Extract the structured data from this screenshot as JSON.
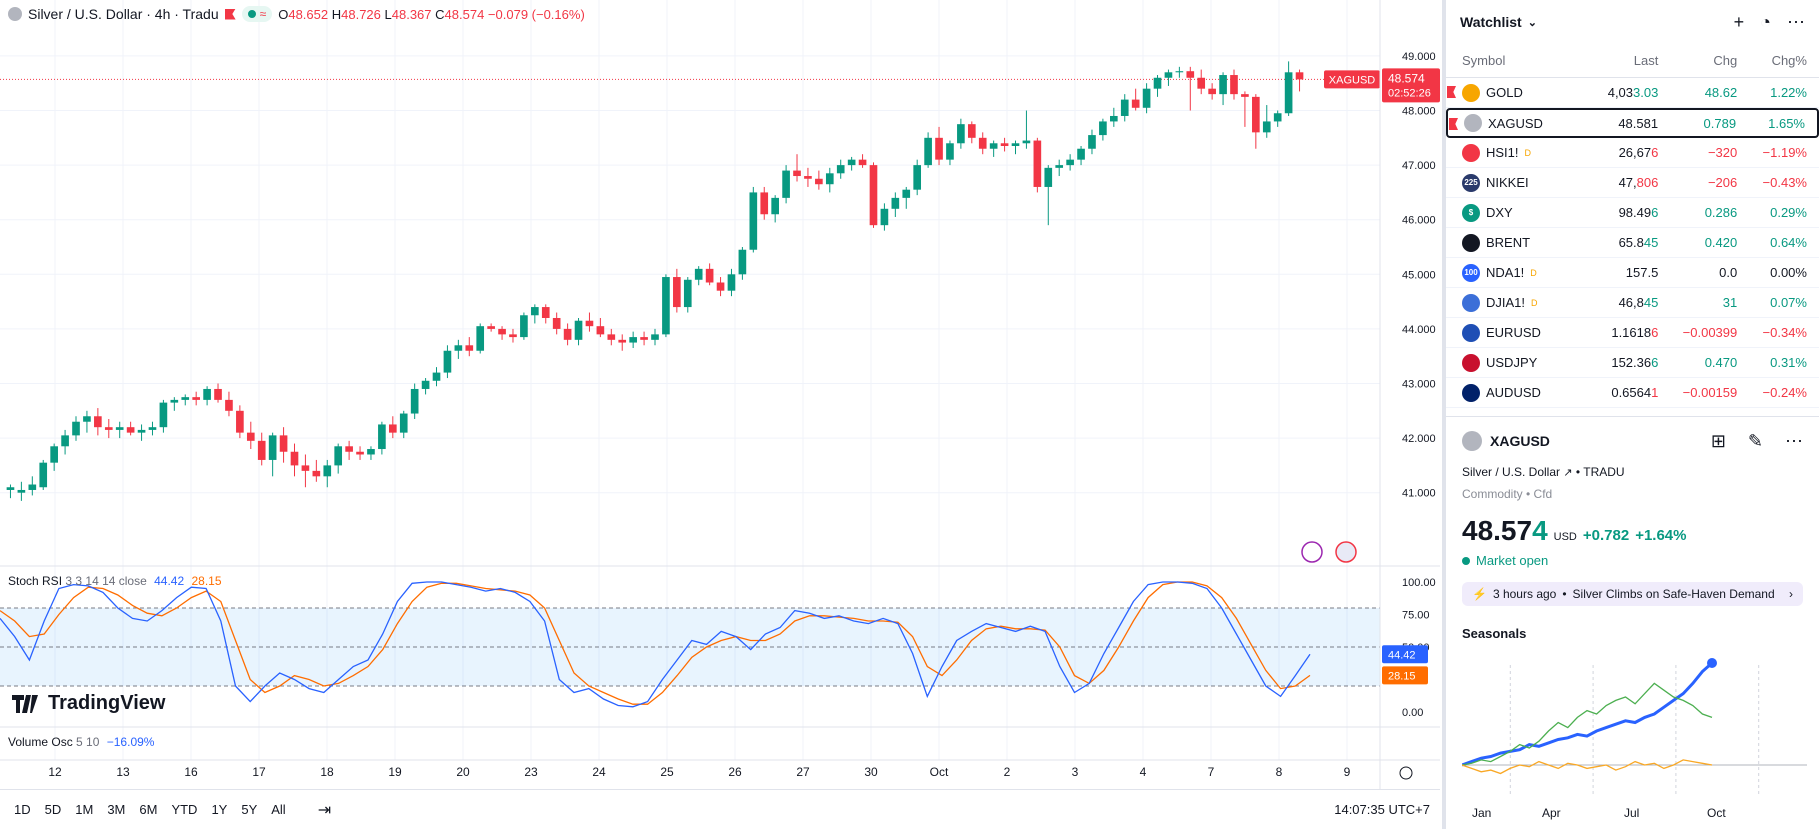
{
  "legend": {
    "title": "Silver / U.S. Dollar · 4h · Tradu",
    "open_label": "O",
    "open": "48.652",
    "high_label": "H",
    "high": "48.726",
    "low_label": "L",
    "low": "48.367",
    "close_label": "C",
    "close": "48.574",
    "change": "−0.079 (−0.16%)"
  },
  "price_axis": {
    "ticks": [
      "49.000",
      "48.000",
      "47.000",
      "46.000",
      "45.000",
      "44.000",
      "43.000",
      "42.000",
      "41.000"
    ],
    "current_symbol": "XAGUSD",
    "current_price": "48.574",
    "countdown": "02:52:26"
  },
  "stoch": {
    "label": "Stoch RSI",
    "params": "3 3 14 14 close",
    "k_value": "44.42",
    "d_value": "28.15",
    "ticks": [
      "100.00",
      "75.00",
      "50.00",
      "0.00"
    ],
    "k_color": "#2962ff",
    "d_color": "#ff6d00"
  },
  "volosc": {
    "label": "Volume Osc",
    "params": "5 10",
    "value": "−16.09%"
  },
  "time_axis": [
    "12",
    "13",
    "16",
    "17",
    "18",
    "19",
    "20",
    "23",
    "24",
    "25",
    "26",
    "27",
    "30",
    "Oct",
    "2",
    "3",
    "4",
    "7",
    "8",
    "9"
  ],
  "bottom_bar": {
    "timeframes": [
      "1D",
      "5D",
      "1M",
      "3M",
      "6M",
      "YTD",
      "1Y",
      "5Y",
      "All"
    ],
    "clock": "14:07:35 UTC+7"
  },
  "logo_text": "TradingView",
  "colors": {
    "up": "#089981",
    "down": "#f23645",
    "accent": "#2962ff"
  },
  "watchlist": {
    "title": "Watchlist",
    "columns": {
      "symbol": "Symbol",
      "last": "Last",
      "chg": "Chg",
      "pct": "Chg%"
    },
    "rows": [
      {
        "symbol": "GOLD",
        "last_a": "4,03",
        "last_b": "3.03",
        "chg": "48.62",
        "pct": "1.22%",
        "dir": "up",
        "icon_bg": "#f7a600",
        "icon": "coin-icon",
        "flag": true
      },
      {
        "symbol": "XAGUSD",
        "last_a": "48.581",
        "last_b": "",
        "chg": "0.789",
        "pct": "1.65%",
        "dir": "up",
        "icon_bg": "#b2b5be",
        "icon": "coin-icon",
        "flag": true,
        "selected": true
      },
      {
        "symbol": "HSI1!",
        "last_a": "26,67",
        "last_b": "6",
        "chg": "−320",
        "pct": "−1.19%",
        "dir": "dn",
        "icon_bg": "#f23645",
        "icon": "hk-icon",
        "d": "D"
      },
      {
        "symbol": "NIKKEI",
        "last_a": "47,",
        "last_b": "806",
        "chg": "−206",
        "pct": "−0.43%",
        "dir": "dn",
        "icon_bg": "#2a3a6b",
        "icon": "225-icon",
        "icon_text": "225"
      },
      {
        "symbol": "DXY",
        "last_a": "98.49",
        "last_b": "6",
        "chg": "0.286",
        "pct": "0.29%",
        "dir": "up",
        "icon_bg": "#089981",
        "icon": "dollar-icon",
        "icon_text": "$"
      },
      {
        "symbol": "BRENT",
        "last_a": "65.8",
        "last_b": "45",
        "chg": "0.420",
        "pct": "0.64%",
        "dir": "up",
        "icon_bg": "#131722",
        "icon": "oil-drop-icon"
      },
      {
        "symbol": "NDA1!",
        "last_a": "157.5",
        "last_b": "",
        "chg": "0.0",
        "pct": "0.00%",
        "dir": "flat",
        "icon_bg": "#2962ff",
        "icon": "100-icon",
        "icon_text": "100",
        "d": "D"
      },
      {
        "symbol": "DJIA1!",
        "last_a": "46,8",
        "last_b": "45",
        "chg": "31",
        "pct": "0.07%",
        "dir": "up",
        "icon_bg": "#3c6fd8",
        "icon": "us-flag-icon",
        "d": "D"
      },
      {
        "symbol": "EURUSD",
        "last_a": "1.1618",
        "last_b": "6",
        "chg": "−0.00399",
        "pct": "−0.34%",
        "dir": "dn",
        "icon_bg": "#1f4fb5",
        "icon": "eu-flag-icon"
      },
      {
        "symbol": "USDJPY",
        "last_a": "152.36",
        "last_b": "6",
        "chg": "0.470",
        "pct": "0.31%",
        "dir": "up",
        "icon_bg": "#c8102e",
        "icon": "jp-flag-icon"
      },
      {
        "symbol": "AUDUSD",
        "last_a": "0.6564",
        "last_b": "1",
        "chg": "−0.00159",
        "pct": "−0.24%",
        "dir": "dn",
        "icon_bg": "#012169",
        "icon": "au-flag-icon"
      }
    ]
  },
  "detail": {
    "symbol": "XAGUSD",
    "name": "Silver / U.S. Dollar",
    "exchange": "TRADU",
    "category": "Commodity • Cfd",
    "price_a": "48.57",
    "price_b": "4",
    "currency": "USD",
    "change": "+0.782",
    "change_pct": "+1.64%",
    "market_status": "Market open",
    "news_time": "3 hours ago",
    "news_headline": "Silver Climbs on Safe-Haven Demand",
    "seasonals_title": "Seasonals",
    "seasonals_months": [
      "Jan",
      "Apr",
      "Jul",
      "Oct"
    ]
  },
  "chart_data": {
    "type": "candlestick",
    "price_axis_range": [
      40.5,
      49.2
    ],
    "candles": [
      [
        41.05,
        41.15,
        40.9,
        41.1
      ],
      [
        41.0,
        41.2,
        40.85,
        41.05
      ],
      [
        41.05,
        41.3,
        40.95,
        41.15
      ],
      [
        41.1,
        41.6,
        41.05,
        41.55
      ],
      [
        41.55,
        41.9,
        41.4,
        41.85
      ],
      [
        41.85,
        42.15,
        41.7,
        42.05
      ],
      [
        42.05,
        42.4,
        41.95,
        42.3
      ],
      [
        42.3,
        42.5,
        42.1,
        42.4
      ],
      [
        42.4,
        42.55,
        42.05,
        42.2
      ],
      [
        42.2,
        42.35,
        42.0,
        42.15
      ],
      [
        42.15,
        42.3,
        42.0,
        42.2
      ],
      [
        42.2,
        42.3,
        42.05,
        42.1
      ],
      [
        42.1,
        42.25,
        41.95,
        42.15
      ],
      [
        42.15,
        42.3,
        42.05,
        42.2
      ],
      [
        42.2,
        42.7,
        42.1,
        42.65
      ],
      [
        42.65,
        42.75,
        42.5,
        42.7
      ],
      [
        42.7,
        42.8,
        42.6,
        42.75
      ],
      [
        42.75,
        42.85,
        42.6,
        42.7
      ],
      [
        42.7,
        42.95,
        42.6,
        42.9
      ],
      [
        42.9,
        43.0,
        42.65,
        42.7
      ],
      [
        42.7,
        42.85,
        42.4,
        42.5
      ],
      [
        42.5,
        42.6,
        42.0,
        42.1
      ],
      [
        42.1,
        42.3,
        41.8,
        41.95
      ],
      [
        41.95,
        42.1,
        41.5,
        41.6
      ],
      [
        41.6,
        42.1,
        41.3,
        42.05
      ],
      [
        42.05,
        42.2,
        41.55,
        41.75
      ],
      [
        41.75,
        41.9,
        41.3,
        41.5
      ],
      [
        41.5,
        41.7,
        41.1,
        41.4
      ],
      [
        41.4,
        41.6,
        41.2,
        41.3
      ],
      [
        41.3,
        41.6,
        41.1,
        41.5
      ],
      [
        41.5,
        41.9,
        41.35,
        41.85
      ],
      [
        41.85,
        41.95,
        41.6,
        41.75
      ],
      [
        41.75,
        41.85,
        41.6,
        41.7
      ],
      [
        41.7,
        41.85,
        41.6,
        41.8
      ],
      [
        41.8,
        42.3,
        41.7,
        42.25
      ],
      [
        42.25,
        42.4,
        42.0,
        42.1
      ],
      [
        42.1,
        42.5,
        42.0,
        42.45
      ],
      [
        42.45,
        43.0,
        42.35,
        42.9
      ],
      [
        42.9,
        43.1,
        42.8,
        43.05
      ],
      [
        43.05,
        43.3,
        42.95,
        43.2
      ],
      [
        43.2,
        43.7,
        43.1,
        43.6
      ],
      [
        43.6,
        43.8,
        43.45,
        43.7
      ],
      [
        43.7,
        43.85,
        43.5,
        43.6
      ],
      [
        43.6,
        44.1,
        43.55,
        44.05
      ],
      [
        44.05,
        44.1,
        43.95,
        44.0
      ],
      [
        44.0,
        44.05,
        43.8,
        43.9
      ],
      [
        43.9,
        44.0,
        43.75,
        43.85
      ],
      [
        43.85,
        44.3,
        43.8,
        44.25
      ],
      [
        44.25,
        44.45,
        44.1,
        44.4
      ],
      [
        44.4,
        44.45,
        44.1,
        44.2
      ],
      [
        44.2,
        44.3,
        43.9,
        44.0
      ],
      [
        44.0,
        44.1,
        43.7,
        43.8
      ],
      [
        43.8,
        44.2,
        43.7,
        44.15
      ],
      [
        44.15,
        44.3,
        43.95,
        44.05
      ],
      [
        44.05,
        44.2,
        43.85,
        43.9
      ],
      [
        43.9,
        44.0,
        43.7,
        43.8
      ],
      [
        43.8,
        43.9,
        43.6,
        43.75
      ],
      [
        43.75,
        43.95,
        43.65,
        43.85
      ],
      [
        43.85,
        43.95,
        43.7,
        43.8
      ],
      [
        43.8,
        44.0,
        43.7,
        43.9
      ],
      [
        43.9,
        45.0,
        43.85,
        44.95
      ],
      [
        44.95,
        45.1,
        44.3,
        44.4
      ],
      [
        44.4,
        44.95,
        44.3,
        44.9
      ],
      [
        44.9,
        45.15,
        44.8,
        45.1
      ],
      [
        45.1,
        45.2,
        44.8,
        44.85
      ],
      [
        44.85,
        44.95,
        44.6,
        44.7
      ],
      [
        44.7,
        45.1,
        44.6,
        45.0
      ],
      [
        45.0,
        45.5,
        44.9,
        45.45
      ],
      [
        45.45,
        46.6,
        45.4,
        46.5
      ],
      [
        46.5,
        46.6,
        46.0,
        46.1
      ],
      [
        46.1,
        46.45,
        45.95,
        46.4
      ],
      [
        46.4,
        47.0,
        46.3,
        46.9
      ],
      [
        46.9,
        47.2,
        46.7,
        46.8
      ],
      [
        46.8,
        46.95,
        46.6,
        46.75
      ],
      [
        46.75,
        46.9,
        46.55,
        46.65
      ],
      [
        46.65,
        46.95,
        46.5,
        46.85
      ],
      [
        46.85,
        47.1,
        46.75,
        47.0
      ],
      [
        47.0,
        47.15,
        46.9,
        47.1
      ],
      [
        47.1,
        47.2,
        46.95,
        47.0
      ],
      [
        47.0,
        47.05,
        45.85,
        45.9
      ],
      [
        45.9,
        46.3,
        45.8,
        46.2
      ],
      [
        46.2,
        46.5,
        46.05,
        46.4
      ],
      [
        46.4,
        46.6,
        46.2,
        46.55
      ],
      [
        46.55,
        47.1,
        46.45,
        47.0
      ],
      [
        47.0,
        47.6,
        46.95,
        47.5
      ],
      [
        47.5,
        47.7,
        47.0,
        47.1
      ],
      [
        47.1,
        47.45,
        47.0,
        47.4
      ],
      [
        47.4,
        47.85,
        47.3,
        47.75
      ],
      [
        47.75,
        47.8,
        47.4,
        47.5
      ],
      [
        47.5,
        47.6,
        47.2,
        47.3
      ],
      [
        47.3,
        47.45,
        47.15,
        47.4
      ],
      [
        47.4,
        47.5,
        47.25,
        47.35
      ],
      [
        47.35,
        47.45,
        47.2,
        47.4
      ],
      [
        47.4,
        48.0,
        47.3,
        47.45
      ],
      [
        47.45,
        47.5,
        46.5,
        46.6
      ],
      [
        46.6,
        47.0,
        45.9,
        46.95
      ],
      [
        46.95,
        47.1,
        46.8,
        47.0
      ],
      [
        47.0,
        47.2,
        46.9,
        47.1
      ],
      [
        47.1,
        47.35,
        47.0,
        47.3
      ],
      [
        47.3,
        47.65,
        47.2,
        47.55
      ],
      [
        47.55,
        47.85,
        47.45,
        47.8
      ],
      [
        47.8,
        48.05,
        47.7,
        47.9
      ],
      [
        47.9,
        48.3,
        47.8,
        48.2
      ],
      [
        48.2,
        48.4,
        48.0,
        48.05
      ],
      [
        48.05,
        48.5,
        47.95,
        48.4
      ],
      [
        48.4,
        48.65,
        48.25,
        48.6
      ],
      [
        48.6,
        48.75,
        48.45,
        48.7
      ],
      [
        48.7,
        48.8,
        48.6,
        48.72
      ],
      [
        48.72,
        48.8,
        48.0,
        48.6
      ],
      [
        48.6,
        48.75,
        48.3,
        48.4
      ],
      [
        48.4,
        48.5,
        48.2,
        48.3
      ],
      [
        48.3,
        48.7,
        48.1,
        48.65
      ],
      [
        48.65,
        48.75,
        48.2,
        48.3
      ],
      [
        48.3,
        48.35,
        47.7,
        48.25
      ],
      [
        48.25,
        48.3,
        47.3,
        47.6
      ],
      [
        47.6,
        48.1,
        47.5,
        47.8
      ],
      [
        47.8,
        48.0,
        47.7,
        47.95
      ],
      [
        47.95,
        48.9,
        47.9,
        48.7
      ],
      [
        48.7,
        48.75,
        48.35,
        48.57
      ]
    ],
    "stoch_k": [
      72,
      58,
      40,
      70,
      95,
      98,
      97,
      92,
      80,
      72,
      70,
      78,
      88,
      96,
      95,
      70,
      20,
      8,
      20,
      30,
      25,
      18,
      15,
      25,
      35,
      40,
      60,
      85,
      99,
      100,
      100,
      98,
      96,
      93,
      95,
      92,
      85,
      70,
      25,
      15,
      18,
      10,
      5,
      4,
      8,
      25,
      40,
      55,
      52,
      62,
      58,
      48,
      60,
      65,
      78,
      76,
      72,
      74,
      70,
      68,
      72,
      68,
      45,
      12,
      35,
      55,
      62,
      68,
      65,
      62,
      66,
      62,
      35,
      15,
      22,
      45,
      65,
      85,
      98,
      100,
      100,
      99,
      95,
      80,
      60,
      40,
      20,
      12,
      28,
      44.42
    ],
    "stoch_d": [
      78,
      70,
      58,
      60,
      75,
      88,
      96,
      95,
      90,
      82,
      76,
      74,
      80,
      88,
      93,
      85,
      55,
      25,
      15,
      20,
      28,
      25,
      20,
      22,
      28,
      35,
      48,
      68,
      85,
      96,
      99,
      99,
      97,
      95,
      94,
      93,
      90,
      80,
      55,
      30,
      20,
      15,
      10,
      6,
      6,
      15,
      28,
      42,
      50,
      55,
      58,
      55,
      55,
      60,
      70,
      74,
      74,
      73,
      72,
      70,
      70,
      69,
      58,
      35,
      28,
      40,
      55,
      64,
      66,
      64,
      64,
      63,
      50,
      28,
      22,
      32,
      50,
      70,
      88,
      98,
      100,
      100,
      97,
      88,
      72,
      52,
      32,
      18,
      20,
      28.15
    ],
    "seasonals": {
      "months": [
        "Jan",
        "Apr",
        "Jul",
        "Oct"
      ],
      "series": [
        {
          "values": [
            0,
            2,
            4,
            5,
            7,
            8,
            9,
            12,
            11,
            13,
            15,
            16,
            18,
            17,
            20,
            22,
            24,
            26,
            25,
            28,
            30,
            34,
            38,
            42,
            48,
            55,
            60
          ]
        },
        {
          "values": [
            0,
            1,
            3,
            2,
            5,
            8,
            12,
            10,
            14,
            20,
            25,
            22,
            28,
            32,
            30,
            35,
            38,
            40,
            36,
            42,
            48,
            44,
            40,
            38,
            35,
            30,
            28
          ]
        },
        {
          "values": [
            0,
            -2,
            -4,
            -3,
            -5,
            -2,
            0,
            -1,
            2,
            0,
            -2,
            1,
            0,
            -2,
            -1,
            0,
            -3,
            -1,
            2,
            0,
            1,
            -2,
            0,
            3,
            2,
            1,
            0
          ]
        }
      ]
    }
  }
}
